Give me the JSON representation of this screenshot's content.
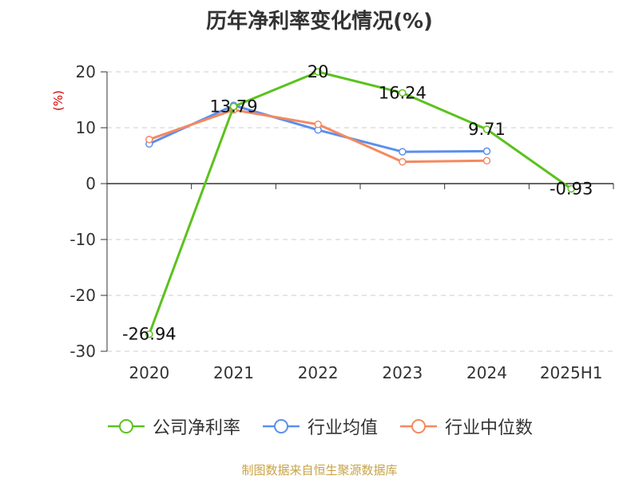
{
  "title": "历年净利率变化情况(%)",
  "source_note": "制图数据来自恒生聚源数据库",
  "chart_data": {
    "type": "line",
    "categories": [
      "2020",
      "2021",
      "2022",
      "2023",
      "2024",
      "2025H1"
    ],
    "ylabel": "(%)",
    "ylim": [
      -30,
      20
    ],
    "yticks": [
      20,
      10,
      0,
      -10,
      -20,
      -30
    ],
    "grid": true,
    "legend_position": "bottom-center",
    "series": [
      {
        "name": "公司净利率",
        "color": "#5bc21e",
        "values": [
          -26.94,
          13.79,
          20,
          16.24,
          9.71,
          -0.93
        ],
        "labels": [
          "-26.94",
          "13.79",
          "20",
          "16.24",
          "9.71",
          "-0.93"
        ],
        "show_labels": true
      },
      {
        "name": "行业均值",
        "color": "#5b8ff0",
        "values": [
          7.1,
          14.0,
          9.6,
          5.7,
          5.8,
          null
        ],
        "show_labels": false
      },
      {
        "name": "行业中位数",
        "color": "#f4895f",
        "values": [
          7.9,
          13.2,
          10.6,
          3.9,
          4.1,
          null
        ],
        "show_labels": false
      }
    ]
  }
}
